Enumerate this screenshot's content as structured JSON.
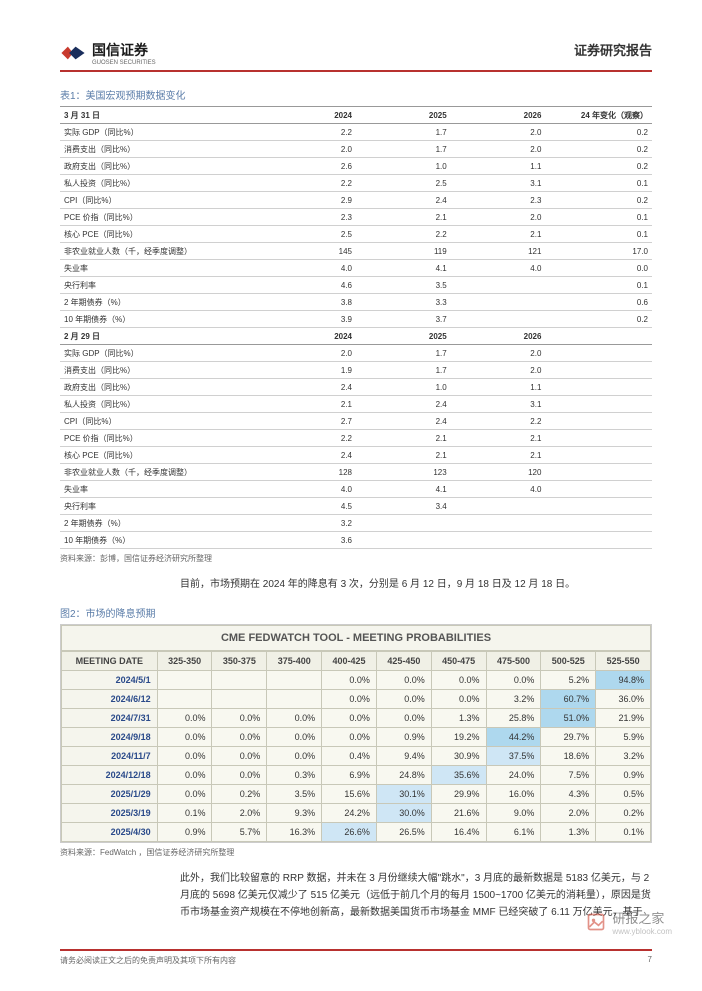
{
  "header": {
    "brand_cn": "国信证券",
    "brand_en": "GUOSEN SECURITIES",
    "report_type": "证券研究报告"
  },
  "table1": {
    "caption": "表1：美国宏观预期数据变化",
    "columns": [
      "3 月 31 日",
      "2024",
      "2025",
      "2026",
      "24 年变化（观察）"
    ],
    "rows_a": [
      [
        "实际 GDP（同比%）",
        "2.2",
        "1.7",
        "2.0",
        "0.2"
      ],
      [
        "消费支出（同比%）",
        "2.0",
        "1.7",
        "2.0",
        "0.2"
      ],
      [
        "政府支出（同比%）",
        "2.6",
        "1.0",
        "1.1",
        "0.2"
      ],
      [
        "私人投资（同比%）",
        "2.2",
        "2.5",
        "3.1",
        "0.1"
      ],
      [
        "CPI（同比%）",
        "2.9",
        "2.4",
        "2.3",
        "0.2"
      ],
      [
        "PCE 价指（同比%）",
        "2.3",
        "2.1",
        "2.0",
        "0.1"
      ],
      [
        "核心 PCE（同比%）",
        "2.5",
        "2.2",
        "2.1",
        "0.1"
      ],
      [
        "非农业就业人数（千，经季度调整）",
        "145",
        "119",
        "121",
        "17.0"
      ],
      [
        "失业率",
        "4.0",
        "4.1",
        "4.0",
        "0.0"
      ],
      [
        "央行利率",
        "4.6",
        "3.5",
        "",
        "0.1"
      ],
      [
        "2 年期债券（%）",
        "3.8",
        "3.3",
        "",
        "0.6"
      ],
      [
        "10 年期债券（%）",
        "3.9",
        "3.7",
        "",
        "0.2"
      ]
    ],
    "columns_b": [
      "2 月 29 日",
      "2024",
      "2025",
      "2026",
      ""
    ],
    "rows_b": [
      [
        "实际 GDP（同比%）",
        "2.0",
        "1.7",
        "2.0",
        ""
      ],
      [
        "消费支出（同比%）",
        "1.9",
        "1.7",
        "2.0",
        ""
      ],
      [
        "政府支出（同比%）",
        "2.4",
        "1.0",
        "1.1",
        ""
      ],
      [
        "私人投资（同比%）",
        "2.1",
        "2.4",
        "3.1",
        ""
      ],
      [
        "CPI（同比%）",
        "2.7",
        "2.4",
        "2.2",
        ""
      ],
      [
        "PCE 价指（同比%）",
        "2.2",
        "2.1",
        "2.1",
        ""
      ],
      [
        "核心 PCE（同比%）",
        "2.4",
        "2.1",
        "2.1",
        ""
      ],
      [
        "非农业就业人数（千，经季度调整）",
        "128",
        "123",
        "120",
        ""
      ],
      [
        "失业率",
        "4.0",
        "4.1",
        "4.0",
        ""
      ],
      [
        "央行利率",
        "4.5",
        "3.4",
        "",
        ""
      ],
      [
        "2 年期债券（%）",
        "3.2",
        "",
        "",
        ""
      ],
      [
        "10 年期债券（%）",
        "3.6",
        "",
        "",
        ""
      ]
    ],
    "source": "资料来源：彭博，国信证券经济研究所整理"
  },
  "para1": "目前，市场预期在 2024 年的降息有 3 次，分别是 6 月 12 日，9 月 18 日及 12 月 18 日。",
  "figure2": {
    "caption": "图2：市场的降息预期",
    "title": "CME FEDWATCH TOOL - MEETING PROBABILITIES",
    "columns": [
      "MEETING DATE",
      "325-350",
      "350-375",
      "375-400",
      "400-425",
      "425-450",
      "450-475",
      "475-500",
      "500-525",
      "525-550"
    ],
    "rows": [
      {
        "cells": [
          "2024/5/1",
          "",
          "",
          "",
          "0.0%",
          "0.0%",
          "0.0%",
          "0.0%",
          "5.2%",
          "94.8%"
        ],
        "hl": [
          0,
          0,
          0,
          0,
          0,
          0,
          0,
          0,
          2
        ]
      },
      {
        "cells": [
          "2024/6/12",
          "",
          "",
          "",
          "0.0%",
          "0.0%",
          "0.0%",
          "3.2%",
          "60.7%",
          "36.0%"
        ],
        "hl": [
          0,
          0,
          0,
          0,
          0,
          0,
          0,
          2,
          0
        ]
      },
      {
        "cells": [
          "2024/7/31",
          "0.0%",
          "0.0%",
          "0.0%",
          "0.0%",
          "0.0%",
          "1.3%",
          "25.8%",
          "51.0%",
          "21.9%"
        ],
        "hl": [
          0,
          0,
          0,
          0,
          0,
          0,
          0,
          2,
          0
        ]
      },
      {
        "cells": [
          "2024/9/18",
          "0.0%",
          "0.0%",
          "0.0%",
          "0.0%",
          "0.9%",
          "19.2%",
          "44.2%",
          "29.7%",
          "5.9%"
        ],
        "hl": [
          0,
          0,
          0,
          0,
          0,
          0,
          2,
          0,
          0
        ]
      },
      {
        "cells": [
          "2024/11/7",
          "0.0%",
          "0.0%",
          "0.0%",
          "0.4%",
          "9.4%",
          "30.9%",
          "37.5%",
          "18.6%",
          "3.2%"
        ],
        "hl": [
          0,
          0,
          0,
          0,
          0,
          0,
          1,
          0,
          0
        ]
      },
      {
        "cells": [
          "2024/12/18",
          "0.0%",
          "0.0%",
          "0.3%",
          "6.9%",
          "24.8%",
          "35.6%",
          "24.0%",
          "7.5%",
          "0.9%"
        ],
        "hl": [
          0,
          0,
          0,
          0,
          0,
          1,
          0,
          0,
          0
        ]
      },
      {
        "cells": [
          "2025/1/29",
          "0.0%",
          "0.2%",
          "3.5%",
          "15.6%",
          "30.1%",
          "29.9%",
          "16.0%",
          "4.3%",
          "0.5%"
        ],
        "hl": [
          0,
          0,
          0,
          0,
          1,
          0,
          0,
          0,
          0
        ]
      },
      {
        "cells": [
          "2025/3/19",
          "0.1%",
          "2.0%",
          "9.3%",
          "24.2%",
          "30.0%",
          "21.6%",
          "9.0%",
          "2.0%",
          "0.2%"
        ],
        "hl": [
          0,
          0,
          0,
          0,
          1,
          0,
          0,
          0,
          0
        ]
      },
      {
        "cells": [
          "2025/4/30",
          "0.9%",
          "5.7%",
          "16.3%",
          "26.6%",
          "26.5%",
          "16.4%",
          "6.1%",
          "1.3%",
          "0.1%"
        ],
        "hl": [
          0,
          0,
          0,
          1,
          0,
          0,
          0,
          0,
          0
        ]
      }
    ],
    "highlight_colors": {
      "0": "#f8f8f0",
      "1": "#cfe6f5",
      "2": "#aed8ee"
    },
    "source": "资料来源：FedWatch ，国信证券经济研究所整理"
  },
  "para2": "此外，我们比较留意的 RRP 数据，并未在 3 月份继续大幅\"跳水\"，3 月底的最新数据是 5183 亿美元，与 2 月底的 5698 亿美元仅减少了 515 亿美元（远低于前几个月的每月 1500~1700 亿美元的消耗量），原因是货币市场基金资产规模在不停地创新高，最新数据美国货币市场基金 MMF 已经突破了 6.11 万亿美元，基于",
  "footer": {
    "disclaimer": "请务必阅读正文之后的免责声明及其项下所有内容",
    "page": "7"
  },
  "watermark": {
    "text": "研报之家",
    "url": "www.yblook.com"
  }
}
